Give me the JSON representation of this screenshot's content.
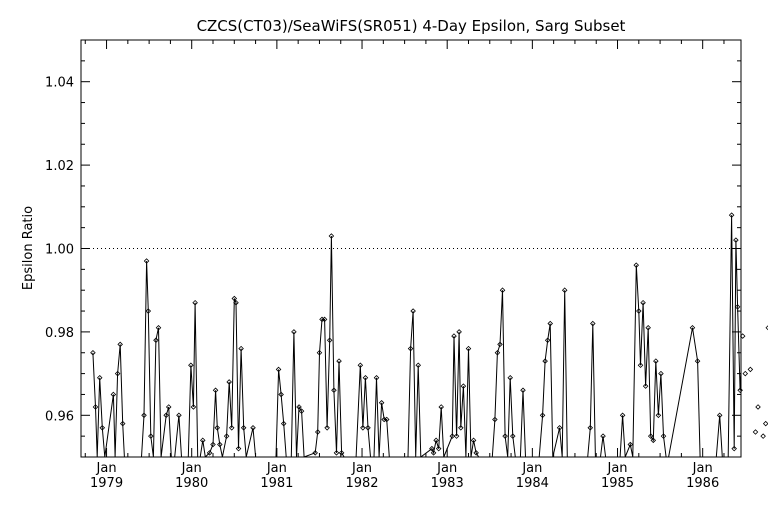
{
  "chart_data": {
    "type": "line",
    "title": "CZCS(CT03)/SeaWiFS(SR051) 4-Day Epsilon, Sarg Subset",
    "xlabel": "",
    "ylabel": "Epsilon Ratio",
    "xlim": [
      1978.7,
      1986.45
    ],
    "ylim": [
      0.95,
      1.05
    ],
    "yticks": [
      0.96,
      0.98,
      1.0,
      1.02,
      1.04
    ],
    "ytick_labels": [
      "0.96",
      "0.98",
      "1.00",
      "1.02",
      "1.04"
    ],
    "xticks": [
      1979,
      1980,
      1981,
      1982,
      1983,
      1984,
      1985,
      1986
    ],
    "xtick_month": "Jan",
    "xtick_years": [
      "1979",
      "1980",
      "1981",
      "1982",
      "1983",
      "1984",
      "1985",
      "1986"
    ],
    "reference_line": 1.0,
    "grid": false,
    "series": [
      {
        "color": "#000000",
        "marker": "diamond",
        "points": [
          [
            1978.84,
            0.975
          ],
          [
            1978.87,
            0.962
          ],
          [
            1978.89,
            0.95
          ],
          [
            1978.92,
            0.969
          ],
          [
            1978.95,
            0.957
          ],
          [
            1978.98,
            0.95
          ],
          [
            1979.08,
            0.965
          ],
          [
            1979.1,
            0.95
          ],
          [
            1979.13,
            0.97
          ],
          [
            1979.16,
            0.977
          ],
          [
            1979.19,
            0.958
          ],
          [
            1979.21,
            0.95
          ],
          [
            1979.41,
            0.95
          ],
          [
            1979.44,
            0.96
          ],
          [
            1979.47,
            0.997
          ],
          [
            1979.49,
            0.985
          ],
          [
            1979.52,
            0.955
          ],
          [
            1979.55,
            0.95
          ],
          [
            1979.58,
            0.978
          ],
          [
            1979.61,
            0.981
          ],
          [
            1979.64,
            0.95
          ],
          [
            1979.7,
            0.96
          ],
          [
            1979.73,
            0.962
          ],
          [
            1979.76,
            0.95
          ],
          [
            1979.8,
            0.95
          ],
          [
            1979.85,
            0.96
          ],
          [
            1979.88,
            0.95
          ],
          [
            1979.96,
            0.95
          ],
          [
            1979.99,
            0.972
          ],
          [
            1980.02,
            0.962
          ],
          [
            1980.04,
            0.987
          ],
          [
            1980.07,
            0.95
          ],
          [
            1980.1,
            0.95
          ],
          [
            1980.13,
            0.954
          ],
          [
            1980.16,
            0.95
          ],
          [
            1980.21,
            0.951
          ],
          [
            1980.25,
            0.953
          ],
          [
            1980.28,
            0.966
          ],
          [
            1980.3,
            0.957
          ],
          [
            1980.33,
            0.953
          ],
          [
            1980.36,
            0.95
          ],
          [
            1980.41,
            0.955
          ],
          [
            1980.44,
            0.968
          ],
          [
            1980.47,
            0.957
          ],
          [
            1980.5,
            0.988
          ],
          [
            1980.52,
            0.987
          ],
          [
            1980.55,
            0.952
          ],
          [
            1980.58,
            0.976
          ],
          [
            1980.61,
            0.957
          ],
          [
            1980.64,
            0.95
          ],
          [
            1980.72,
            0.957
          ],
          [
            1980.75,
            0.95
          ],
          [
            1980.99,
            0.95
          ],
          [
            1981.02,
            0.971
          ],
          [
            1981.05,
            0.965
          ],
          [
            1981.08,
            0.958
          ],
          [
            1981.11,
            0.95
          ],
          [
            1981.17,
            0.95
          ],
          [
            1981.2,
            0.98
          ],
          [
            1981.23,
            0.95
          ],
          [
            1981.26,
            0.962
          ],
          [
            1981.29,
            0.961
          ],
          [
            1981.32,
            0.95
          ],
          [
            1981.45,
            0.951
          ],
          [
            1981.48,
            0.956
          ],
          [
            1981.5,
            0.975
          ],
          [
            1981.53,
            0.983
          ],
          [
            1981.56,
            0.983
          ],
          [
            1981.59,
            0.957
          ],
          [
            1981.62,
            0.978
          ],
          [
            1981.64,
            1.003
          ],
          [
            1981.67,
            0.966
          ],
          [
            1981.7,
            0.951
          ],
          [
            1981.73,
            0.973
          ],
          [
            1981.76,
            0.951
          ],
          [
            1981.79,
            0.95
          ],
          [
            1981.93,
            0.95
          ],
          [
            1981.98,
            0.972
          ],
          [
            1982.01,
            0.957
          ],
          [
            1982.04,
            0.969
          ],
          [
            1982.07,
            0.957
          ],
          [
            1982.1,
            0.95
          ],
          [
            1982.14,
            0.95
          ],
          [
            1982.17,
            0.969
          ],
          [
            1982.2,
            0.95
          ],
          [
            1982.23,
            0.963
          ],
          [
            1982.26,
            0.959
          ],
          [
            1982.29,
            0.959
          ],
          [
            1982.32,
            0.95
          ],
          [
            1982.54,
            0.95
          ],
          [
            1982.57,
            0.976
          ],
          [
            1982.6,
            0.985
          ],
          [
            1982.63,
            0.95
          ],
          [
            1982.66,
            0.972
          ],
          [
            1982.69,
            0.95
          ],
          [
            1982.82,
            0.952
          ],
          [
            1982.84,
            0.951
          ],
          [
            1982.87,
            0.954
          ],
          [
            1982.9,
            0.952
          ],
          [
            1982.93,
            0.962
          ],
          [
            1982.96,
            0.95
          ],
          [
            1983.06,
            0.955
          ],
          [
            1983.08,
            0.979
          ],
          [
            1983.11,
            0.955
          ],
          [
            1983.14,
            0.98
          ],
          [
            1983.16,
            0.957
          ],
          [
            1983.19,
            0.967
          ],
          [
            1983.22,
            0.95
          ],
          [
            1983.25,
            0.976
          ],
          [
            1983.28,
            0.95
          ],
          [
            1983.31,
            0.954
          ],
          [
            1983.34,
            0.951
          ],
          [
            1983.37,
            0.95
          ],
          [
            1983.53,
            0.95
          ],
          [
            1983.56,
            0.959
          ],
          [
            1983.59,
            0.975
          ],
          [
            1983.62,
            0.977
          ],
          [
            1983.65,
            0.99
          ],
          [
            1983.68,
            0.955
          ],
          [
            1983.71,
            0.95
          ],
          [
            1983.74,
            0.969
          ],
          [
            1983.77,
            0.955
          ],
          [
            1983.8,
            0.95
          ],
          [
            1983.86,
            0.95
          ],
          [
            1983.89,
            0.966
          ],
          [
            1983.92,
            0.95
          ],
          [
            1984.08,
            0.95
          ],
          [
            1984.12,
            0.96
          ],
          [
            1984.15,
            0.973
          ],
          [
            1984.18,
            0.978
          ],
          [
            1984.21,
            0.982
          ],
          [
            1984.24,
            0.95
          ],
          [
            1984.32,
            0.957
          ],
          [
            1984.35,
            0.95
          ],
          [
            1984.38,
            0.99
          ],
          [
            1984.41,
            0.95
          ],
          [
            1984.65,
            0.95
          ],
          [
            1984.68,
            0.957
          ],
          [
            1984.71,
            0.982
          ],
          [
            1984.74,
            0.95
          ],
          [
            1984.8,
            0.95
          ],
          [
            1984.83,
            0.955
          ],
          [
            1984.86,
            0.95
          ],
          [
            1985.03,
            0.95
          ],
          [
            1985.06,
            0.96
          ],
          [
            1985.09,
            0.95
          ],
          [
            1985.15,
            0.953
          ],
          [
            1985.18,
            0.95
          ],
          [
            1985.22,
            0.996
          ],
          [
            1985.25,
            0.985
          ],
          [
            1985.27,
            0.972
          ],
          [
            1985.3,
            0.987
          ],
          [
            1985.33,
            0.967
          ],
          [
            1985.36,
            0.981
          ],
          [
            1985.39,
            0.955
          ],
          [
            1985.42,
            0.954
          ],
          [
            1985.45,
            0.973
          ],
          [
            1985.48,
            0.96
          ],
          [
            1985.51,
            0.97
          ],
          [
            1985.54,
            0.955
          ],
          [
            1985.57,
            0.95
          ],
          [
            1985.6,
            0.95
          ],
          [
            1985.88,
            0.981
          ],
          [
            1985.94,
            0.973
          ],
          [
            1985.97,
            0.95
          ],
          [
            1986.13,
            0.95
          ],
          [
            1986.16,
            0.95
          ],
          [
            1986.2,
            0.96
          ],
          [
            1986.23,
            0.95
          ],
          [
            1986.3,
            0.95
          ],
          [
            1986.34,
            1.008
          ],
          [
            1986.37,
            0.952
          ],
          [
            1986.39,
            1.002
          ],
          [
            1986.41,
            0.986
          ],
          [
            1986.44,
            0.966
          ],
          [
            1986.47,
            0.979
          ],
          [
            1986.5,
            0.97
          ],
          [
            1986.53,
            0.95
          ],
          [
            1986.56,
            0.971
          ],
          [
            1986.59,
            0.95
          ],
          [
            1986.62,
            0.956
          ],
          [
            1986.65,
            0.962
          ],
          [
            1986.68,
            0.95
          ],
          [
            1986.71,
            0.955
          ],
          [
            1986.74,
            0.958
          ],
          [
            1986.77,
            0.981
          ]
        ]
      }
    ]
  }
}
